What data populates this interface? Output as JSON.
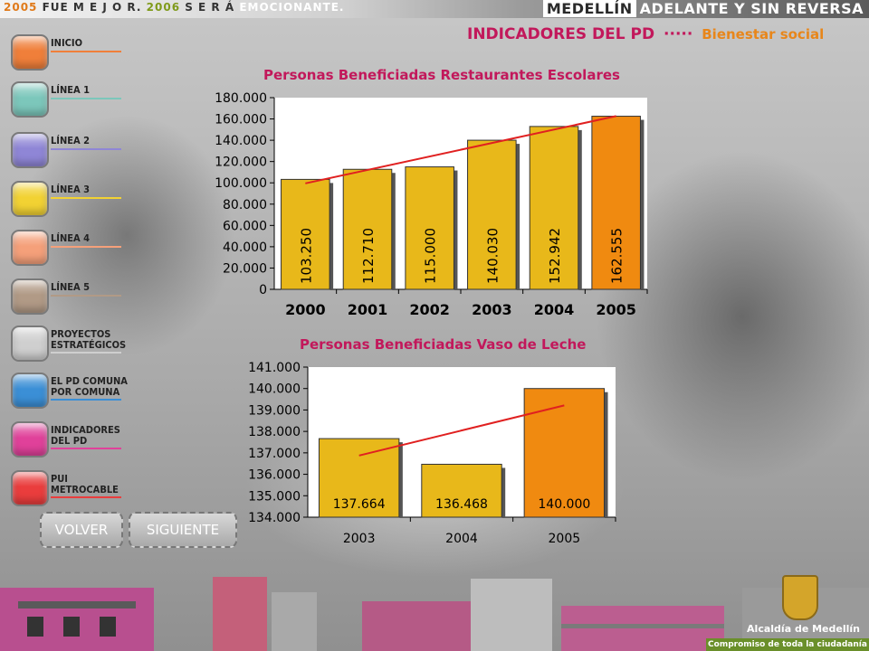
{
  "top": {
    "slogan_year1": "2005",
    "slogan_mid1": "FUE M E J O R.",
    "slogan_year2": "2006",
    "slogan_mid2": "S E R Á",
    "slogan_end": "EMOCIONANTE.",
    "brand_city": "MEDELLÍN",
    "brand_rest": "ADELANTE Y SIN REVERSA"
  },
  "header": {
    "title": "INDICADORES DEL PD",
    "dots": "·····",
    "subtitle": "Bienestar social"
  },
  "sidebar": {
    "items": [
      {
        "label": "INICIO",
        "color": "#f07f3a"
      },
      {
        "label": "LÍNEA 1",
        "color": "#7cc7bb"
      },
      {
        "label": "LÍNEA 2",
        "color": "#8f86d6"
      },
      {
        "label": "LÍNEA 3",
        "color": "#f2d233"
      },
      {
        "label": "LÍNEA 4",
        "color": "#f5a07a"
      },
      {
        "label": "LÍNEA 5",
        "color": "#b19a86"
      },
      {
        "label": "PROYECTOS\nESTRATÉGICOS",
        "color": "#cfcfcf"
      },
      {
        "label": "EL PD COMUNA\nPOR COMUNA",
        "color": "#3b8fd6"
      },
      {
        "label": "INDICADORES\nDEL PD",
        "color": "#e0419a"
      },
      {
        "label": "PUI\nMETROCABLE",
        "color": "#ea3d3d"
      }
    ]
  },
  "nav": {
    "back_label": "VOLVER",
    "next_label": "SIGUIENTE"
  },
  "charts": {
    "chart1_title": "Personas Beneficiadas Restaurantes Escolares",
    "chart2_title": "Personas Beneficiadas Vaso de Leche"
  },
  "chart_data": [
    {
      "type": "bar",
      "title": "Personas Beneficiadas Restaurantes Escolares",
      "categories": [
        "2000",
        "2001",
        "2002",
        "2003",
        "2004",
        "2005"
      ],
      "values": [
        103250,
        112710,
        115000,
        140030,
        152942,
        162555
      ],
      "value_labels": [
        "103.250",
        "112.710",
        "115.000",
        "140.030",
        "152.942",
        "162.555"
      ],
      "yticks": [
        "0",
        "20.000",
        "40.000",
        "60.000",
        "80.000",
        "100.000",
        "120.000",
        "140.000",
        "160.000",
        "180.000"
      ],
      "ylim": [
        0,
        180000
      ],
      "trendline": true,
      "colors": {
        "bar": "#e8b81a",
        "highlight": "#f08a10",
        "trend": "#e02020"
      }
    },
    {
      "type": "bar",
      "title": "Personas Beneficiadas Vaso de Leche",
      "categories": [
        "2003",
        "2004",
        "2005"
      ],
      "values": [
        137664,
        136468,
        140000
      ],
      "value_labels": [
        "137.664",
        "136.468",
        "140.000"
      ],
      "yticks": [
        "134.000",
        "135.000",
        "136.000",
        "137.000",
        "138.000",
        "139.000",
        "140.000",
        "141.000"
      ],
      "ylim": [
        134000,
        141000
      ],
      "trendline": true,
      "colors": {
        "bar": "#e8b81a",
        "highlight": "#f08a10",
        "trend": "#e02020"
      }
    }
  ],
  "footer": {
    "org": "Alcaldía de Medellín",
    "tagline": "Compromiso de toda la ciudadanía"
  }
}
